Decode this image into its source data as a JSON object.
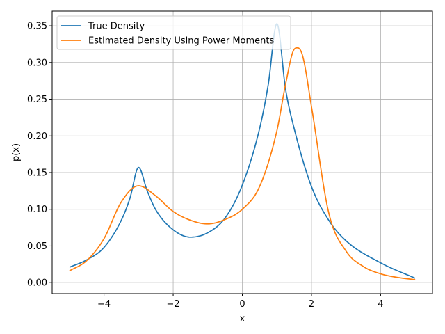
{
  "chart_data": {
    "type": "line",
    "xlabel": "x",
    "ylabel": "p(x)",
    "xlim": [
      -5.5,
      5.5
    ],
    "ylim": [
      -0.015,
      0.37
    ],
    "xticks": [
      -4,
      -2,
      0,
      2,
      4
    ],
    "yticks": [
      0.0,
      0.05,
      0.1,
      0.15,
      0.2,
      0.25,
      0.3,
      0.35
    ],
    "xtick_labels": [
      "−4",
      "−2",
      "0",
      "2",
      "4"
    ],
    "ytick_labels": [
      "0.00",
      "0.05",
      "0.10",
      "0.15",
      "0.20",
      "0.25",
      "0.30",
      "0.35"
    ],
    "grid": true,
    "legend_position": "upper-left",
    "series": [
      {
        "name": "True Density",
        "color": "#1f77b4",
        "x": [
          -5,
          -4.5,
          -4,
          -3.5,
          -3.25,
          -3,
          -2.75,
          -2.5,
          -2,
          -1.5,
          -1,
          -0.5,
          0,
          0.5,
          0.75,
          1,
          1.25,
          1.5,
          2,
          2.5,
          3,
          4,
          5
        ],
        "y": [
          0.021,
          0.031,
          0.048,
          0.085,
          0.115,
          0.157,
          0.125,
          0.099,
          0.072,
          0.062,
          0.068,
          0.088,
          0.133,
          0.21,
          0.27,
          0.353,
          0.264,
          0.21,
          0.131,
          0.085,
          0.057,
          0.027,
          0.006
        ]
      },
      {
        "name": "Estimated Density Using Power Moments",
        "color": "#ff7f0e",
        "x": [
          -5,
          -4.5,
          -4,
          -3.5,
          -3,
          -2.5,
          -2,
          -1.5,
          -1,
          -0.5,
          0,
          0.5,
          1,
          1.25,
          1.5,
          1.6,
          1.75,
          2,
          2.5,
          3,
          3.5,
          4,
          4.5,
          5
        ],
        "y": [
          0.016,
          0.03,
          0.06,
          0.11,
          0.132,
          0.118,
          0.097,
          0.085,
          0.08,
          0.086,
          0.1,
          0.131,
          0.207,
          0.27,
          0.318,
          0.32,
          0.308,
          0.24,
          0.095,
          0.043,
          0.022,
          0.012,
          0.007,
          0.004
        ]
      }
    ]
  }
}
